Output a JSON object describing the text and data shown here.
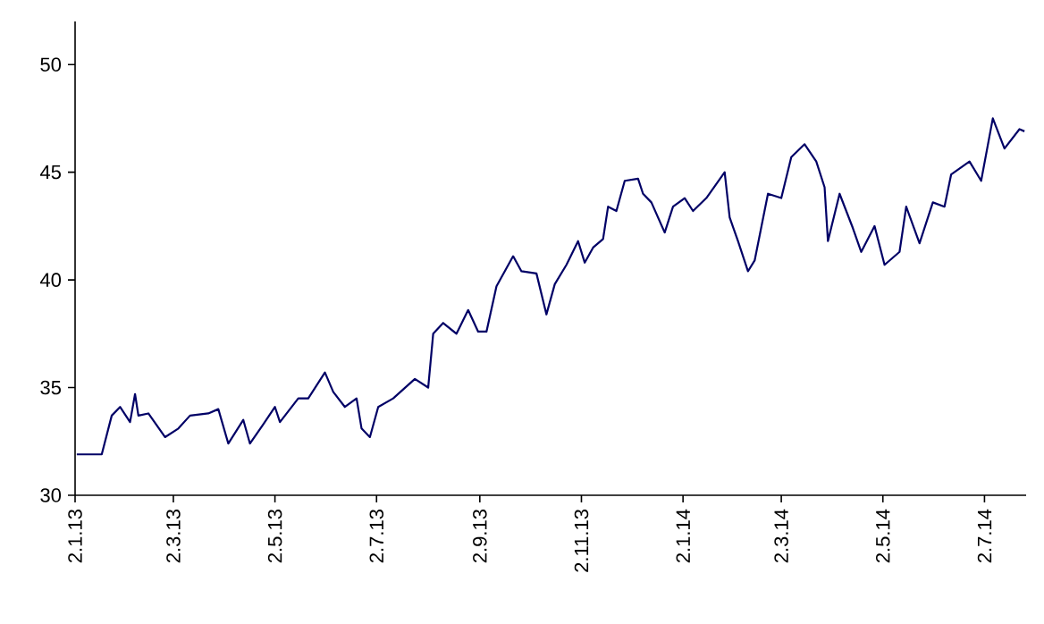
{
  "chart_data": {
    "type": "line",
    "x": [
      "2013-01-03",
      "2013-01-18",
      "2013-01-24",
      "2013-01-29",
      "2013-02-04",
      "2013-02-07",
      "2013-02-09",
      "2013-02-15",
      "2013-02-25",
      "2013-03-05",
      "2013-03-12",
      "2013-03-23",
      "2013-03-29",
      "2013-04-04",
      "2013-04-13",
      "2013-04-17",
      "2013-04-25",
      "2013-05-02",
      "2013-05-05",
      "2013-05-16",
      "2013-05-22",
      "2013-06-01",
      "2013-06-06",
      "2013-06-13",
      "2013-06-20",
      "2013-06-23",
      "2013-06-28",
      "2013-07-03",
      "2013-07-12",
      "2013-07-25",
      "2013-08-02",
      "2013-08-05",
      "2013-08-11",
      "2013-08-19",
      "2013-08-26",
      "2013-09-01",
      "2013-09-06",
      "2013-09-12",
      "2013-09-22",
      "2013-09-27",
      "2013-10-06",
      "2013-10-12",
      "2013-10-17",
      "2013-10-24",
      "2013-10-31",
      "2013-11-04",
      "2013-11-09",
      "2013-11-15",
      "2013-11-18",
      "2013-11-23",
      "2013-11-28",
      "2013-12-06",
      "2013-12-09",
      "2013-12-14",
      "2013-12-22",
      "2013-12-27",
      "2014-01-03",
      "2014-01-08",
      "2014-01-16",
      "2014-01-27",
      "2014-01-30",
      "2014-02-04",
      "2014-02-10",
      "2014-02-14",
      "2014-02-22",
      "2014-03-02",
      "2014-03-08",
      "2014-03-16",
      "2014-03-23",
      "2014-03-28",
      "2014-03-30",
      "2014-04-06",
      "2014-04-14",
      "2014-04-19",
      "2014-04-27",
      "2014-05-03",
      "2014-05-12",
      "2014-05-16",
      "2014-05-24",
      "2014-06-01",
      "2014-06-08",
      "2014-06-12",
      "2014-06-23",
      "2014-06-30",
      "2014-07-07",
      "2014-07-14",
      "2014-07-23",
      "2014-07-26"
    ],
    "series": [
      {
        "color": "#000066",
        "values": [
          31.9,
          31.9,
          33.7,
          34.1,
          33.4,
          34.7,
          33.7,
          33.8,
          32.7,
          33.1,
          33.7,
          33.8,
          34.0,
          32.4,
          33.5,
          32.4,
          33.3,
          34.1,
          33.4,
          34.5,
          34.5,
          35.7,
          34.8,
          34.1,
          34.5,
          33.1,
          32.7,
          34.1,
          34.5,
          35.4,
          35.0,
          37.5,
          38.0,
          37.5,
          38.6,
          37.6,
          37.6,
          39.7,
          41.1,
          40.4,
          40.3,
          38.4,
          39.8,
          40.7,
          41.8,
          40.8,
          41.5,
          41.9,
          43.4,
          43.2,
          44.6,
          44.7,
          44.0,
          43.6,
          42.2,
          43.4,
          43.8,
          43.2,
          43.8,
          45.0,
          42.9,
          41.8,
          40.4,
          40.9,
          44.0,
          43.8,
          45.7,
          46.3,
          45.5,
          44.3,
          41.8,
          44.0,
          42.4,
          41.3,
          42.5,
          40.7,
          41.3,
          43.4,
          41.7,
          43.6,
          43.4,
          44.9,
          45.5,
          44.6,
          47.5,
          46.1,
          47.0,
          46.9
        ]
      }
    ],
    "xlim": [
      "2013-01-02",
      "2014-07-27"
    ],
    "xticks": [
      {
        "value": "2013-01-02",
        "label": "2.1.13"
      },
      {
        "value": "2013-03-02",
        "label": "2.3.13"
      },
      {
        "value": "2013-05-02",
        "label": "2.5.13"
      },
      {
        "value": "2013-07-02",
        "label": "2.7.13"
      },
      {
        "value": "2013-09-02",
        "label": "2.9.13"
      },
      {
        "value": "2013-11-02",
        "label": "2.11.13"
      },
      {
        "value": "2014-01-02",
        "label": "2.1.14"
      },
      {
        "value": "2014-03-02",
        "label": "2.3.14"
      },
      {
        "value": "2014-05-02",
        "label": "2.5.14"
      },
      {
        "value": "2014-07-02",
        "label": "2.7.14"
      }
    ],
    "ylim": [
      30,
      52
    ],
    "yticks": [
      30,
      35,
      40,
      45,
      50
    ]
  }
}
